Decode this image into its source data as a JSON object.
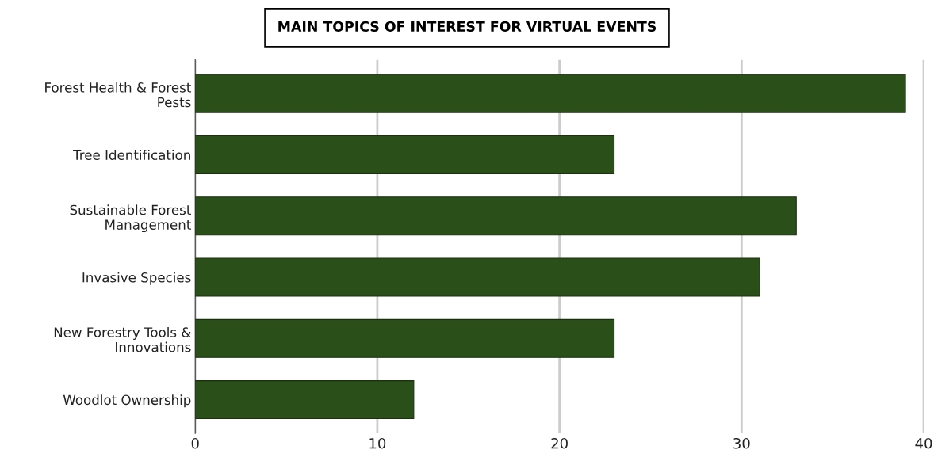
{
  "chart_data": {
    "type": "bar",
    "orientation": "horizontal",
    "title": "MAIN TOPICS OF INTEREST FOR VIRTUAL EVENTS",
    "categories": [
      "Forest Health & Forest\nPests",
      "Tree Identification",
      "Sustainable Forest\nManagement",
      "Invasive Species",
      "New Forestry Tools &\nInnovations",
      "Woodlot Ownership"
    ],
    "values": [
      39,
      23,
      33,
      31,
      23,
      12
    ],
    "color": "#2a4f18",
    "xlim": [
      0,
      40
    ],
    "xticks": [
      0,
      10,
      20,
      30,
      40
    ],
    "grid": "x"
  }
}
